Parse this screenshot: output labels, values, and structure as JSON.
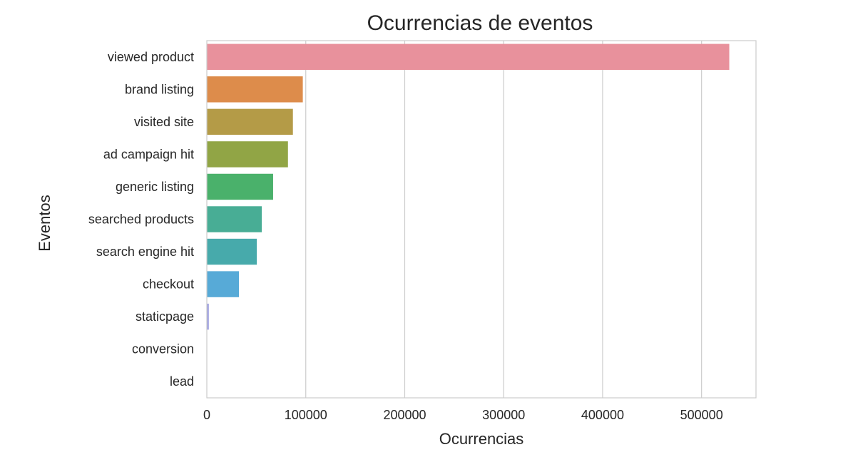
{
  "chart_data": {
    "type": "bar",
    "orientation": "horizontal",
    "title": "Ocurrencias de eventos",
    "xlabel": "Ocurrencias",
    "ylabel": "Eventos",
    "categories": [
      "viewed product",
      "brand listing",
      "visited site",
      "ad campaign hit",
      "generic listing",
      "searched products",
      "search engine hit",
      "checkout",
      "staticpage",
      "conversion",
      "lead"
    ],
    "values": [
      528000,
      97000,
      87000,
      82000,
      67000,
      55500,
      50500,
      32500,
      2000,
      150,
      80
    ],
    "colors": [
      "#e8919c",
      "#dd8c4b",
      "#b49b47",
      "#91a545",
      "#4ab16b",
      "#48ad95",
      "#47aaab",
      "#57aad7",
      "#9d9fe2",
      "#d79be1",
      "#e695bf"
    ],
    "xlim": [
      0,
      555000
    ],
    "xticks": [
      0,
      100000,
      200000,
      300000,
      400000,
      500000
    ],
    "xtick_labels": [
      "0",
      "100000",
      "200000",
      "300000",
      "400000",
      "500000"
    ],
    "grid": "vertical",
    "legend": "none"
  }
}
